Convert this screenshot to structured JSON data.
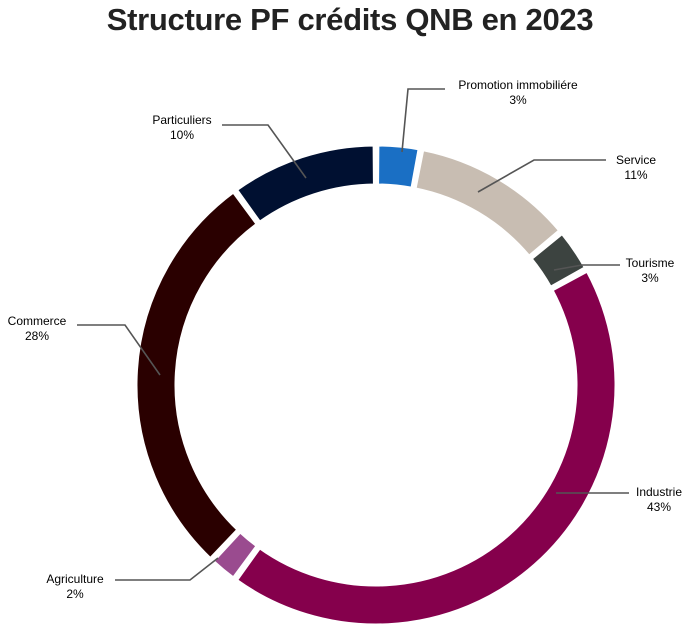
{
  "chart_data": {
    "type": "pie",
    "style": "donut",
    "title": "Structure PF crédits QNB en 2023",
    "categories": [
      "Promotion immobiliére",
      "Service",
      "Tourisme",
      "Industrie",
      "Agriculture",
      "Commerce",
      "Particuliers"
    ],
    "values": [
      3,
      11,
      3,
      43,
      2,
      28,
      10
    ],
    "value_labels": [
      "3%",
      "11%",
      "3%",
      "43%",
      "2%",
      "28%",
      "10%"
    ],
    "colors": [
      "#1a6fc4",
      "#c8bdb2",
      "#3c4340",
      "#85004c",
      "#9a4b8f",
      "#2a0000",
      "#001031"
    ],
    "legend": "none",
    "grid": false
  }
}
